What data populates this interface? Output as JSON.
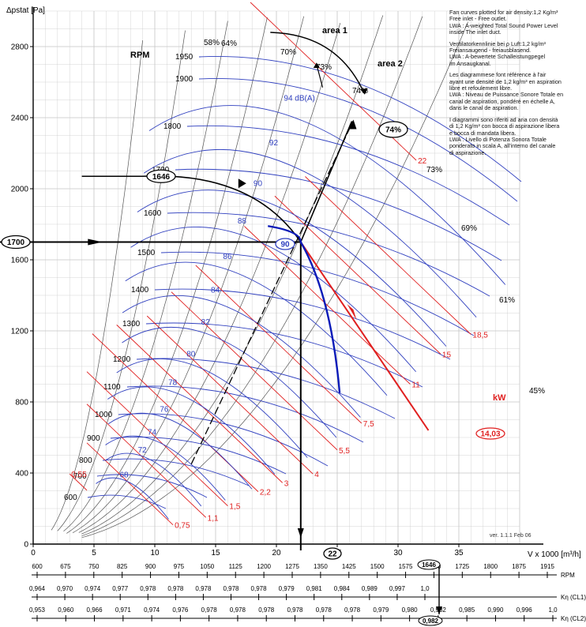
{
  "chart_data": {
    "type": "line",
    "title": "",
    "xlabel": "V x 1000 [m³/h]",
    "ylabel": "Δpstat [Pa]",
    "xlim": [
      0,
      40
    ],
    "ylim": [
      0,
      3000
    ],
    "grid": true,
    "x_ticks": [
      0,
      5,
      10,
      15,
      20,
      25,
      30,
      35
    ],
    "y_ticks": [
      0,
      400,
      800,
      1200,
      1600,
      2000,
      2400,
      2800
    ],
    "rpm_title": "RPM",
    "rpm_lines": [
      {
        "rpm": 600,
        "label": "600",
        "a": 28.0,
        "b": 0.11
      },
      {
        "rpm": 700,
        "label": "700",
        "a": 38.0,
        "b": 0.11
      },
      {
        "rpm": 800,
        "label": "800",
        "a": 50.0,
        "b": 0.11
      },
      {
        "rpm": 900,
        "label": "900",
        "a": 63.0,
        "b": 0.11
      },
      {
        "rpm": 1000,
        "label": "1000",
        "a": 78.0,
        "b": 0.11
      },
      {
        "rpm": 1100,
        "label": "1100",
        "a": 94.0,
        "b": 0.11
      },
      {
        "rpm": 1200,
        "label": "1200",
        "a": 112.0,
        "b": 0.11
      },
      {
        "rpm": 1300,
        "label": "1300",
        "a": 131.0,
        "b": 0.11
      },
      {
        "rpm": 1400,
        "label": "1400",
        "a": 152.0,
        "b": 0.11
      },
      {
        "rpm": 1500,
        "label": "1500",
        "a": 175.0,
        "b": 0.11
      },
      {
        "rpm": 1600,
        "label": "1600",
        "a": 199.0,
        "b": 0.11
      },
      {
        "rpm": 1700,
        "label": "1700",
        "a": 224.0,
        "b": 0.11
      },
      {
        "rpm": 1800,
        "label": "1800",
        "a": 251.0,
        "b": 0.11
      },
      {
        "rpm": 1900,
        "label": "1900",
        "a": 281.0,
        "b": 0.11
      },
      {
        "rpm": 1950,
        "label": "1950",
        "a": 296.0,
        "b": 0.11
      }
    ],
    "efficiency_lines": [
      {
        "label": "58%",
        "k": 35.0
      },
      {
        "label": "64%",
        "k": 18.5
      },
      {
        "label": "70%",
        "k": 11.5
      },
      {
        "label": "73%",
        "k": 8.0
      },
      {
        "label": "74%",
        "k": 6.0
      },
      {
        "label": "73%",
        "k": 4.6
      },
      {
        "label": "69%",
        "k": 3.6
      },
      {
        "label": "61%",
        "k": 2.9
      },
      {
        "label": "45%",
        "k": 2.3
      }
    ],
    "power_lines": [
      {
        "label": "0,55",
        "x0": 3.0,
        "y0": 395
      },
      {
        "label": "0,75",
        "x0": 11.5,
        "y0": 108
      },
      {
        "label": "1,1",
        "x0": 14.2,
        "y0": 150
      },
      {
        "label": "1,5",
        "x0": 16.0,
        "y0": 215
      },
      {
        "label": "2,2",
        "x0": 18.5,
        "y0": 295
      },
      {
        "label": "3",
        "x0": 20.5,
        "y0": 345
      },
      {
        "label": "4",
        "x0": 23.0,
        "y0": 395
      },
      {
        "label": "5,5",
        "x0": 25.0,
        "y0": 530
      },
      {
        "label": "7,5",
        "x0": 27.0,
        "y0": 680
      },
      {
        "label": "11",
        "x0": 31.0,
        "y0": 900
      },
      {
        "label": "15",
        "x0": 33.5,
        "y0": 1070
      },
      {
        "label": "18,5",
        "x0": 36.0,
        "y0": 1180
      },
      {
        "label": "22",
        "x0": 31.5,
        "y0": 2160
      }
    ],
    "kw_label": "kW",
    "sound_lines": [
      {
        "label": "68",
        "db": 68,
        "x0": 7.5,
        "y0": 380
      },
      {
        "label": "72",
        "db": 72,
        "x0": 9.0,
        "y0": 520
      },
      {
        "label": "74",
        "db": 74,
        "x0": 9.8,
        "y0": 620
      },
      {
        "label": "76",
        "db": 76,
        "x0": 10.8,
        "y0": 750
      },
      {
        "label": "78",
        "db": 78,
        "x0": 11.5,
        "y0": 900
      },
      {
        "label": "80",
        "db": 80,
        "x0": 13.0,
        "y0": 1060
      },
      {
        "label": "82",
        "db": 82,
        "x0": 14.2,
        "y0": 1240
      },
      {
        "label": "84",
        "db": 84,
        "x0": 15.0,
        "y0": 1420
      },
      {
        "label": "86",
        "db": 86,
        "x0": 16.0,
        "y0": 1610
      },
      {
        "label": "88",
        "db": 88,
        "x0": 17.2,
        "y0": 1810
      },
      {
        "label": "90",
        "db": 90,
        "x0": 18.5,
        "y0": 2020
      },
      {
        "label": "92",
        "db": 92,
        "x0": 19.8,
        "y0": 2250
      },
      {
        "label": "94 dB(A)",
        "db": 94,
        "x0": 21.0,
        "y0": 2500
      }
    ],
    "operating_point": {
      "V": 22,
      "pstat": 1700,
      "rpm": 1646,
      "power_kw": 14.03,
      "efficiency": "74%"
    },
    "callouts": {
      "dp_value": "1700",
      "rpm_value": "1646",
      "v_value": "22",
      "efficiency_value": "74%",
      "kw_value": "14,03",
      "sound_value": "90",
      "rpm_scale_value": "1646",
      "kn_value": "0,982"
    },
    "areas": [
      "area 1",
      "area 2"
    ],
    "version": "ver. 1.1.1 Feb 06",
    "rpm_scale": {
      "label": "RPM",
      "ticks": [
        "600",
        "675",
        "750",
        "825",
        "900",
        "975",
        "1050",
        "1125",
        "1200",
        "1275",
        "1350",
        "1425",
        "1500",
        "1575",
        "1650",
        "1725",
        "1800",
        "1875",
        "1915"
      ]
    },
    "kn_cl1_scale": {
      "label": "Kη (CL1)",
      "ticks": [
        "0,964",
        "0,970",
        "0,974",
        "0,977",
        "0,978",
        "0,978",
        "0,978",
        "0,978",
        "0,978",
        "0,979",
        "0,981",
        "0,984",
        "0,989",
        "0,997",
        "1,0"
      ]
    },
    "kn_cl2_scale": {
      "label": "Kη (CL2)",
      "ticks": [
        "0,953",
        "0,960",
        "0,966",
        "0,971",
        "0,974",
        "0,976",
        "0,978",
        "0,978",
        "0,978",
        "0,978",
        "0,978",
        "0,978",
        "0,979",
        "0,980",
        "0,982",
        "0,985",
        "0,990",
        "0,996",
        "1,0"
      ]
    }
  },
  "notes": [
    "Fan curves plotted for air density:1,2 Kg/m³\nFree inlet - Free outlet.\nLWA : A-weighted Total Sound Power Level\ninside The inlet duct.",
    "Ventilatorkennlinie bei ρ Luft:1,2 kg/m³\nFreiansaugend - freiausblasend.\nLWA : A-bewertete Schalleistungpegel\nim Ansaugkanal.",
    "Les diagrammese font référence à l'air\nayant une densité de 1,2 kg/m³ en aspiration\nlibre et refoulement libre.\nLWA : Niveau de Puissance Sonore Totale en\ncanal de aspiration, pondéré en échelle A,\ndans le canal de aspiration.",
    "I diagrammi sono riferiti ad aria con densità\ndi 1,2 Kg/m³ con bocca di aspirazione libera\ne bocca di mandata libera.\nLWA : Livello di Potenza Sonora Totale\nponderato in scala A, all'interno del canale\ndi aspirazione."
  ],
  "colors": {
    "rpm_line": "#2f3fbf",
    "efficiency_line": "#555555",
    "power_line": "#e01f1f",
    "sound_line": "#2f3fbf",
    "operating_curve": "#0a1ab8",
    "grid": "#c4c4c4",
    "axis": "#000000"
  }
}
